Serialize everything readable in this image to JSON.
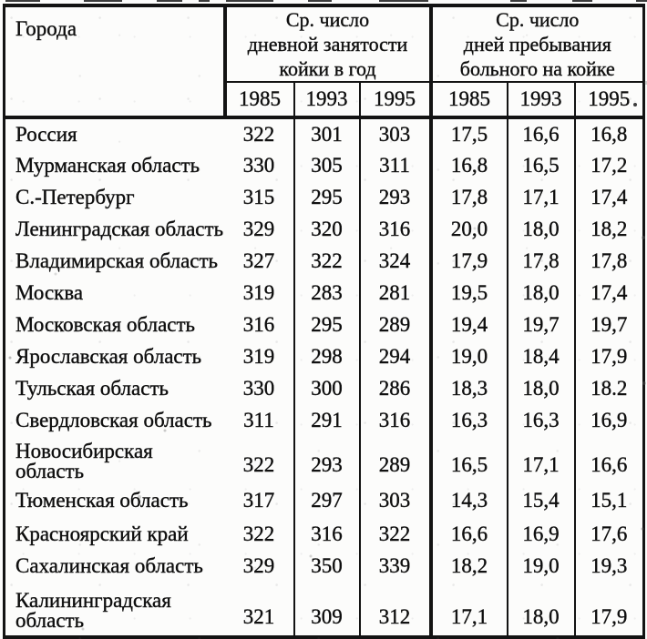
{
  "table": {
    "header": {
      "cities_label": "Города",
      "groups": [
        {
          "lines": [
            "Ср. число",
            "дневной занятости",
            "койки в год"
          ]
        },
        {
          "lines": [
            "Ср. число",
            "дней пребывания",
            "больного на койке"
          ]
        }
      ],
      "years": [
        "1985",
        "1993",
        "1995",
        "1985",
        "1993",
        "1995"
      ]
    },
    "rows": [
      {
        "city": "Россия",
        "values": [
          "322",
          "301",
          "303",
          "17,5",
          "16,6",
          "16,8"
        ]
      },
      {
        "city": "Мурманская область",
        "values": [
          "330",
          "305",
          "311",
          "16,8",
          "16,5",
          "17,2"
        ]
      },
      {
        "city": "С.-Петербург",
        "values": [
          "315",
          "295",
          "293",
          "17,8",
          "17,1",
          "17,4"
        ]
      },
      {
        "city": "Ленинградская область",
        "values": [
          "329",
          "320",
          "316",
          "20,0",
          "18,0",
          "18,2"
        ]
      },
      {
        "city": "Владимирская область",
        "values": [
          "327",
          "322",
          "324",
          "17,9",
          "17,8",
          "17,8"
        ]
      },
      {
        "city": "Москва",
        "values": [
          "319",
          "283",
          "281",
          "19,5",
          "18,0",
          "17,4"
        ]
      },
      {
        "city": "Московская область",
        "values": [
          "316",
          "295",
          "289",
          "19,4",
          "19,7",
          "19,7"
        ]
      },
      {
        "city": "Ярославская область",
        "values": [
          "319",
          "298",
          "294",
          "19,0",
          "18,4",
          "17,9"
        ]
      },
      {
        "city": "Тульская область",
        "values": [
          "330",
          "300",
          "286",
          "18,3",
          "18,0",
          "18.2"
        ]
      },
      {
        "city": "Свердловская область",
        "values": [
          "311",
          "291",
          "316",
          "16,3",
          "16,3",
          "16,9"
        ]
      },
      {
        "city": "Новосибирская область",
        "two_line": true,
        "values": [
          "322",
          "293",
          "289",
          "16,5",
          "17,1",
          "16,6"
        ]
      },
      {
        "city": "Тюменская область",
        "values": [
          "317",
          "297",
          "303",
          "14,3",
          "15,4",
          "15,1"
        ]
      },
      {
        "city": "Красноярский край",
        "values": [
          "322",
          "316",
          "322",
          "16,6",
          "16,9",
          "17,6"
        ]
      },
      {
        "city": "Сахалинская область",
        "values": [
          "329",
          "350",
          "339",
          "18,2",
          "19,0",
          "19,3"
        ]
      },
      {
        "city": "Калининградская область",
        "two_line": true,
        "values": [
          "321",
          "309",
          "312",
          "17,1",
          "18,0",
          "17,9"
        ]
      }
    ]
  }
}
